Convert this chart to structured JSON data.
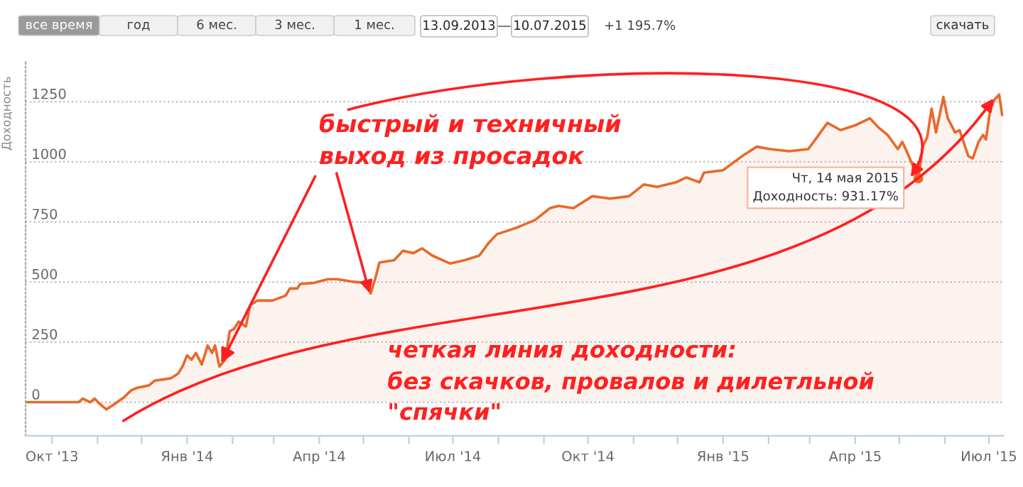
{
  "chart_data": {
    "type": "area",
    "ylabel": "Доходность",
    "x": [
      "2013-09-13",
      "2013-10-19",
      "2013-10-22",
      "2013-10-27",
      "2013-10-30",
      "2013-11-03",
      "2013-11-07",
      "2013-11-12",
      "2013-11-19",
      "2013-11-24",
      "2013-11-28",
      "2013-12-06",
      "2013-12-10",
      "2013-12-16",
      "2013-12-21",
      "2013-12-26",
      "2013-12-29",
      "2014-01-01",
      "2014-01-04",
      "2014-01-07",
      "2014-01-11",
      "2014-01-15",
      "2014-01-18",
      "2014-01-20",
      "2014-01-23",
      "2014-01-27",
      "2014-01-30",
      "2014-02-02",
      "2014-02-05",
      "2014-02-10",
      "2014-02-13",
      "2014-02-18",
      "2014-02-28",
      "2014-03-09",
      "2014-03-12",
      "2014-03-17",
      "2014-03-19",
      "2014-03-28",
      "2014-04-07",
      "2014-04-13",
      "2014-04-23",
      "2014-05-03",
      "2014-05-06",
      "2014-05-09",
      "2014-05-12",
      "2014-05-22",
      "2014-05-28",
      "2014-06-04",
      "2014-06-10",
      "2014-06-17",
      "2014-06-29",
      "2014-07-09",
      "2014-07-19",
      "2014-07-25",
      "2014-07-31",
      "2014-08-13",
      "2014-08-26",
      "2014-09-05",
      "2014-09-11",
      "2014-09-21",
      "2014-10-04",
      "2014-10-16",
      "2014-10-29",
      "2014-11-08",
      "2014-11-17",
      "2014-11-30",
      "2014-12-07",
      "2014-12-16",
      "2014-12-19",
      "2015-01-01",
      "2015-01-14",
      "2015-01-24",
      "2015-02-02",
      "2015-02-15",
      "2015-02-28",
      "2015-03-06",
      "2015-03-13",
      "2015-03-22",
      "2015-04-01",
      "2015-04-11",
      "2015-04-17",
      "2015-04-23",
      "2015-04-30",
      "2015-05-03",
      "2015-05-06",
      "2015-05-14",
      "2015-05-17",
      "2015-05-20",
      "2015-05-23",
      "2015-05-26",
      "2015-05-31",
      "2015-06-03",
      "2015-06-08",
      "2015-06-11",
      "2015-06-17",
      "2015-06-20",
      "2015-06-24",
      "2015-06-27",
      "2015-06-29",
      "2015-07-02",
      "2015-07-05",
      "2015-07-08",
      "2015-07-10"
    ],
    "series": [
      {
        "color": "#e8692a",
        "values": [
          0,
          0,
          15,
          0,
          15,
          -10,
          -30,
          -10,
          20,
          50,
          60,
          70,
          90,
          95,
          100,
          120,
          150,
          195,
          177,
          205,
          157,
          236,
          205,
          236,
          148,
          177,
          295,
          305,
          335,
          315,
          404,
          423,
          423,
          443,
          473,
          473,
          492,
          496,
          512,
          512,
          502,
          496,
          453,
          512,
          581,
          591,
          630,
          620,
          640,
          610,
          577,
          591,
          610,
          660,
          699,
          725,
          758,
          807,
          817,
          807,
          857,
          847,
          857,
          906,
          896,
          915,
          935,
          915,
          955,
          965,
          1024,
          1063,
          1053,
          1044,
          1053,
          1103,
          1162,
          1132,
          1152,
          1181,
          1142,
          1112,
          1053,
          1083,
          1044,
          931.17,
          1063,
          1103,
          1221,
          1122,
          1270,
          1181,
          1122,
          1132,
          1024,
          1014,
          1083,
          1112,
          1093,
          1221,
          1260,
          1280,
          1195.7
        ]
      }
    ],
    "xlim": [
      "2013-09-13",
      "2015-07-11"
    ],
    "xticks": [
      {
        "value": "2013-10-01",
        "label": "Окт '13"
      },
      {
        "value": "2013-11-01",
        "label": null
      },
      {
        "value": "2013-12-01",
        "label": null
      },
      {
        "value": "2014-01-01",
        "label": "Янв '14"
      },
      {
        "value": "2014-02-01",
        "label": null
      },
      {
        "value": "2014-03-01",
        "label": null
      },
      {
        "value": "2014-04-01",
        "label": "Апр '14"
      },
      {
        "value": "2014-05-01",
        "label": null
      },
      {
        "value": "2014-06-01",
        "label": null
      },
      {
        "value": "2014-07-01",
        "label": "Июл '14"
      },
      {
        "value": "2014-08-01",
        "label": null
      },
      {
        "value": "2014-09-01",
        "label": null
      },
      {
        "value": "2014-10-01",
        "label": "Окт '14"
      },
      {
        "value": "2014-11-01",
        "label": null
      },
      {
        "value": "2014-12-01",
        "label": null
      },
      {
        "value": "2015-01-01",
        "label": "Янв '15"
      },
      {
        "value": "2015-02-01",
        "label": null
      },
      {
        "value": "2015-03-01",
        "label": null
      },
      {
        "value": "2015-04-01",
        "label": "Апр '15"
      },
      {
        "value": "2015-05-01",
        "label": null
      },
      {
        "value": "2015-06-01",
        "label": null
      },
      {
        "value": "2015-07-01",
        "label": "Июл '15"
      }
    ],
    "ylim": [
      -140,
      1420
    ],
    "yticks": [
      0,
      250,
      500,
      750,
      1000,
      1250
    ],
    "grid": "y",
    "marker": "none",
    "line_style": "solid",
    "annotations": [
      "все время",
      "год",
      "6 мес.",
      "3 мес.",
      "1 мес.",
      "13.09.2013",
      "—",
      "10.07.2015",
      "+1 195.7%",
      "скачать",
      {
        "text": "Чт, 14 мая 2015\nДоходность: 931.17%",
        "x": "2015-05-14",
        "y": 931.17
      },
      {
        "text": "быстрый и техничный\nвыход из просадок",
        "x": "2014-01-23",
        "y": 148
      },
      "четкая линия доходности:\nбез скачков, провалов и дилетльной\n\"спячки\""
    ]
  }
}
